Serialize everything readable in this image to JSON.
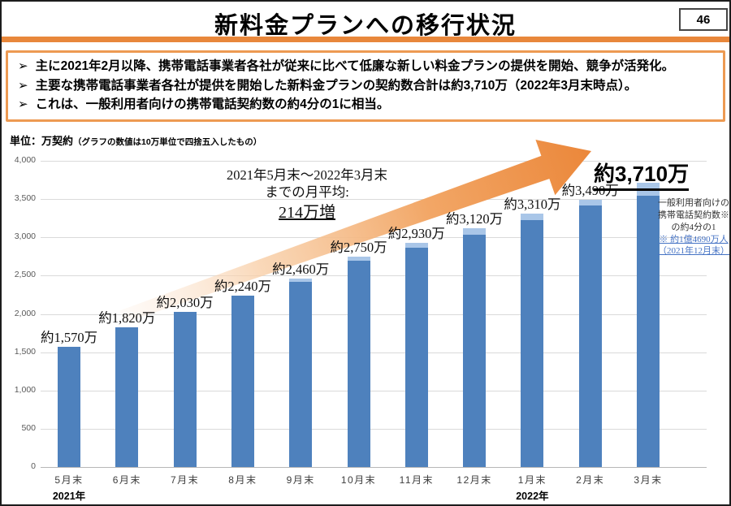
{
  "slide": {
    "title": "新料金プランへの移行状況",
    "page_number": "46"
  },
  "summary": {
    "marker": "➢",
    "bullets": [
      "主に2021年2月以降、携帯電話事業者各社が従来に比べて低廉な新しい料金プランの提供を開始、競争が活発化。",
      "主要な携帯電話事業者各社が提供を開始した新料金プランの契約数合計は約3,710万（2022年3月末時点）。",
      "これは、一般利用者向けの携帯電話契約数の約4分の1に相当。"
    ]
  },
  "chart": {
    "unit_label": "単位：万契約",
    "unit_note": "（グラフの数値は10万単位で四捨五入したもの）",
    "average_annotation": {
      "line1": "2021年5月末～2022年3月末",
      "line2": "までの月平均:",
      "line3": "214万増"
    },
    "side_note": {
      "line1": "一般利用者向けの",
      "line2": "携帯電話契約数※",
      "line3": "の約4分の1",
      "link_line1": "※ 約1億4690万人",
      "link_line2": "（2021年12月末）"
    },
    "year_labels": [
      {
        "text": "2021年",
        "category_index": 0
      },
      {
        "text": "2022年",
        "category_index": 8
      }
    ]
  },
  "chart_data": {
    "type": "bar",
    "categories": [
      "5月末",
      "6月末",
      "7月末",
      "8月末",
      "9月末",
      "10月末",
      "11月末",
      "12月末",
      "1月末",
      "2月末",
      "3月末"
    ],
    "values": [
      1570,
      1820,
      2030,
      2240,
      2460,
      2750,
      2930,
      3120,
      3310,
      3490,
      3710
    ],
    "value_labels": [
      "約1,570万",
      "約1,820万",
      "約2,030万",
      "約2,240万",
      "約2,460万",
      "約2,750万",
      "約2,930万",
      "約3,120万",
      "約3,310万",
      "約3,490万",
      "約3,710万"
    ],
    "light_top_segment_values": [
      0,
      0,
      0,
      0,
      40,
      50,
      60,
      80,
      80,
      70,
      170
    ],
    "title": "新料金プランへの移行状況",
    "xlabel": "",
    "ylabel": "万契約",
    "ylim": [
      0,
      4000
    ],
    "ytick_interval": 500,
    "yticks_top_to_bottom": [
      "4,000",
      "3,500",
      "3,000",
      "2,500",
      "2,000",
      "1,500",
      "1,000",
      "500",
      "0"
    ],
    "grid": "horizontal",
    "legend": "none"
  },
  "colors": {
    "bar_blue": "#4E81BD",
    "bar_light_blue": "#A9C6E8",
    "arrow_orange": "#EB873A",
    "arrow_orange_light": "#F8CEA6",
    "divider_orange": "#E8873B",
    "box_border_orange": "#ED9A52",
    "link_blue": "#4472C4",
    "grid_gray": "#DADADA",
    "axis_line_gray": "#B7B7B7",
    "axis_text_gray": "#595959"
  }
}
